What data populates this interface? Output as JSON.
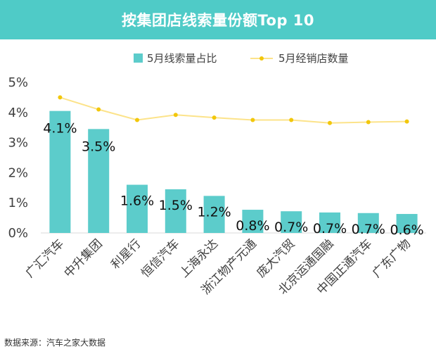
{
  "header": {
    "title": "按集团店线索量份额Top 10"
  },
  "footer": {
    "source": "数据来源：汽车之家大数据"
  },
  "colors": {
    "bar": "#5ccccb",
    "line": "#fce38a",
    "marker": "#f2c70b",
    "header_bg": "#4fcbc7"
  },
  "chart_data": {
    "type": "bar+line",
    "title": "按集团店线索量份额Top 10",
    "categories": [
      "广汇汽车",
      "中升集团",
      "利星行",
      "恒信汽车",
      "上海永达",
      "浙江物产元通",
      "庞大汽贸",
      "北京运通国融",
      "中国正通汽车",
      "广东广物"
    ],
    "series": [
      {
        "name": "5月线索量占比",
        "type": "bar",
        "values": [
          4.05,
          3.45,
          1.6,
          1.45,
          1.23,
          0.77,
          0.72,
          0.68,
          0.66,
          0.63
        ],
        "labels": [
          "4.1%",
          "3.5%",
          "1.6%",
          "1.5%",
          "1.2%",
          "0.8%",
          "0.7%",
          "0.7%",
          "0.7%",
          "0.6%"
        ]
      },
      {
        "name": "5月经销店数量",
        "type": "line",
        "values": [
          4.5,
          4.1,
          3.75,
          3.92,
          3.83,
          3.75,
          3.75,
          3.65,
          3.68,
          3.7
        ]
      }
    ],
    "ylim": [
      0,
      5
    ],
    "yticks": [
      "0%",
      "1%",
      "2%",
      "3%",
      "4%",
      "5%"
    ],
    "legend_position": "top"
  }
}
